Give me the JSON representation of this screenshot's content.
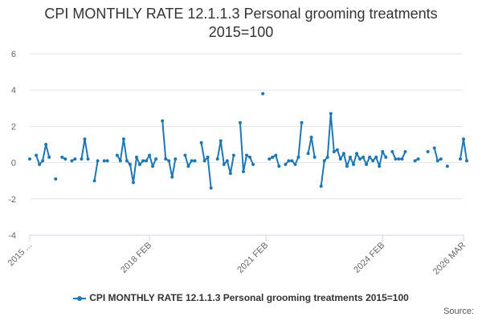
{
  "title_line1": "CPI MONTHLY RATE 12.1.1.3 Personal grooming treatments",
  "title_line2": "2015=100",
  "credits": "Source:",
  "colors": {
    "series": "#1f77b4",
    "grid": "#e6e6e6",
    "axis": "#ccd6eb",
    "text": "#666666"
  },
  "chart_data": {
    "type": "line",
    "title": "CPI MONTHLY RATE 12.1.1.3 Personal grooming treatments 2015=100",
    "xlabel": "",
    "ylabel": "",
    "ylim": [
      -4,
      6
    ],
    "yticks": [
      -4,
      -2,
      0,
      2,
      4,
      6
    ],
    "x_range": [
      "2015 JAN",
      "2026 MAR"
    ],
    "xticks": [
      {
        "label": "2015 ...",
        "month_index": 0
      },
      {
        "label": "2018 FEB",
        "month_index": 37
      },
      {
        "label": "2021 FEB",
        "month_index": 73
      },
      {
        "label": "2024 FEB",
        "month_index": 109
      },
      {
        "label": "2026 MAR",
        "month_index": 134
      }
    ],
    "legend": "bottom-center",
    "grid": true,
    "series": [
      {
        "name": "CPI MONTHLY RATE 12.1.1.3 Personal grooming treatments 2015=100",
        "start": "2015 JAN",
        "values": [
          0.2,
          null,
          0.4,
          -0.1,
          0.1,
          1.0,
          0.3,
          null,
          -0.9,
          null,
          0.3,
          0.2,
          null,
          0.1,
          0.2,
          null,
          0.2,
          1.3,
          0.2,
          null,
          -1.0,
          0.1,
          null,
          0.1,
          0.1,
          null,
          null,
          0.4,
          0.1,
          1.3,
          0.1,
          -0.1,
          -1.1,
          0.3,
          -0.1,
          0.1,
          0.1,
          0.4,
          -0.2,
          0.2,
          null,
          2.3,
          0.2,
          0.1,
          -0.8,
          0.2,
          null,
          null,
          0.4,
          -0.2,
          0.1,
          0.1,
          null,
          1.1,
          0.1,
          0.3,
          -1.4,
          null,
          0.2,
          1.2,
          -0.1,
          0.1,
          -0.6,
          0.4,
          null,
          2.2,
          -0.5,
          0.4,
          0.3,
          -0.1,
          null,
          null,
          3.8,
          null,
          0.2,
          0.3,
          0.4,
          -0.2,
          null,
          -0.1,
          0.1,
          0.1,
          -0.1,
          0.3,
          2.2,
          null,
          0.5,
          1.4,
          0.3,
          null,
          -1.3,
          0.1,
          0.3,
          2.7,
          0.6,
          0.7,
          0.2,
          0.5,
          -0.2,
          0.3,
          -0.1,
          0.5,
          0.2,
          0.3,
          -0.1,
          0.3,
          0.1,
          0.3,
          -0.2,
          0.6,
          0.3,
          null,
          0.6,
          0.2,
          0.2,
          0.2,
          0.6,
          null,
          null,
          0.1,
          0.2,
          null,
          null,
          0.6,
          null,
          0.8,
          0.1,
          0.2,
          null,
          -0.2,
          null,
          null,
          null,
          0.2,
          1.3,
          0.1
        ]
      }
    ]
  }
}
